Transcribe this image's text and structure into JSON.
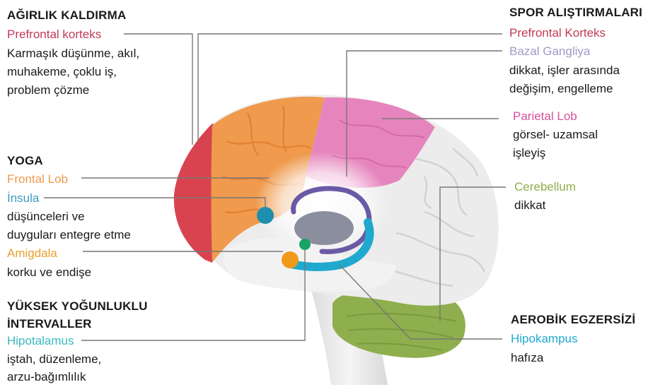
{
  "colors": {
    "prefrontal": "#c03a57",
    "basal": "#a09ac8",
    "parietal": "#d94f9c",
    "frontal": "#ef9a4c",
    "insula": "#3d9cbf",
    "amygdala": "#e9a030",
    "hypothalamus": "#3bb8c0",
    "cerebellum": "#8fae4d",
    "hippocampus": "#1fa9cf",
    "heading": "#1a1a1a"
  },
  "left": {
    "weight": {
      "heading": "AĞIRLIK KALDIRMA",
      "region": "Prefrontal korteks",
      "lines": [
        "Karmaşık düşünme, akıl,",
        "muhakeme, çoklu iş,",
        "problem çözme"
      ]
    },
    "yoga": {
      "heading": "YOGA",
      "region1": "Frontal Lob",
      "region2": "İnsula",
      "lines2": [
        "düşünceleri ve",
        "duyguları entegre etme"
      ],
      "region3": "Amigdala",
      "lines3": [
        "korku ve endişe"
      ]
    },
    "hiit": {
      "heading1": "YÜKSEK YOĞUNLUKLU",
      "heading2": "İNTERVALLER",
      "region": "Hipotalamus",
      "lines": [
        "iştah, düzenleme,",
        "arzu-bağımlılık"
      ]
    }
  },
  "right": {
    "sport": {
      "heading": "SPOR ALIŞTIRMALARI",
      "region1": "Prefrontal Korteks",
      "region2": "Bazal Gangliya",
      "lines": [
        "dikkat, işler arasında",
        "değişim, engelleme"
      ]
    },
    "parietal": {
      "region": "Parietal Lob",
      "lines": [
        "görsel- uzamsal",
        "işleyiş"
      ]
    },
    "cerebellum": {
      "region": "Cerebellum",
      "lines": [
        "dikkat"
      ]
    },
    "aerobic": {
      "heading": "AEROBİK EGZERSİZİ",
      "region": "Hipokampus",
      "lines": [
        "hafıza"
      ]
    }
  }
}
